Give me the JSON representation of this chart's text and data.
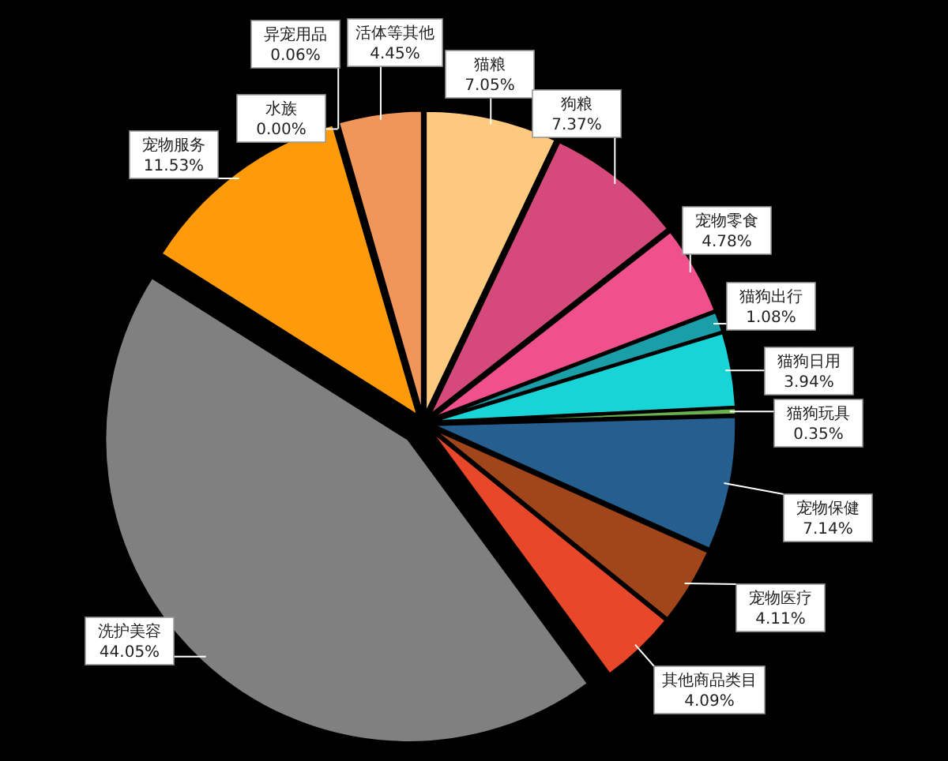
{
  "chart_data": {
    "type": "pie",
    "categories": [
      "猫粮",
      "狗粮",
      "宠物零食",
      "猫狗出行",
      "猫狗日用",
      "猫狗玩具",
      "宠物保健",
      "宠物医疗",
      "其他商品类目",
      "洗护美容",
      "宠物服务",
      "水族",
      "异宠用品",
      "活体等其他"
    ],
    "values": [
      7.05,
      7.37,
      4.78,
      1.08,
      3.94,
      0.35,
      7.14,
      4.11,
      4.09,
      44.05,
      11.53,
      0.0,
      0.06,
      4.45
    ],
    "value_labels": [
      "7.05%",
      "7.37%",
      "4.78%",
      "1.08%",
      "3.94%",
      "0.35%",
      "7.14%",
      "4.11%",
      "4.09%",
      "44.05%",
      "11.53%",
      "0.00%",
      "0.06%",
      "4.45%"
    ],
    "colors": [
      "#fcc97e",
      "#d6497b",
      "#f0508c",
      "#1a9fa8",
      "#19d4d6",
      "#6ab04c",
      "#245f8f",
      "#a0461a",
      "#e8472a",
      "#808080",
      "#ff9a0a",
      "#3a6fb0",
      "#888888",
      "#f0965a"
    ]
  }
}
